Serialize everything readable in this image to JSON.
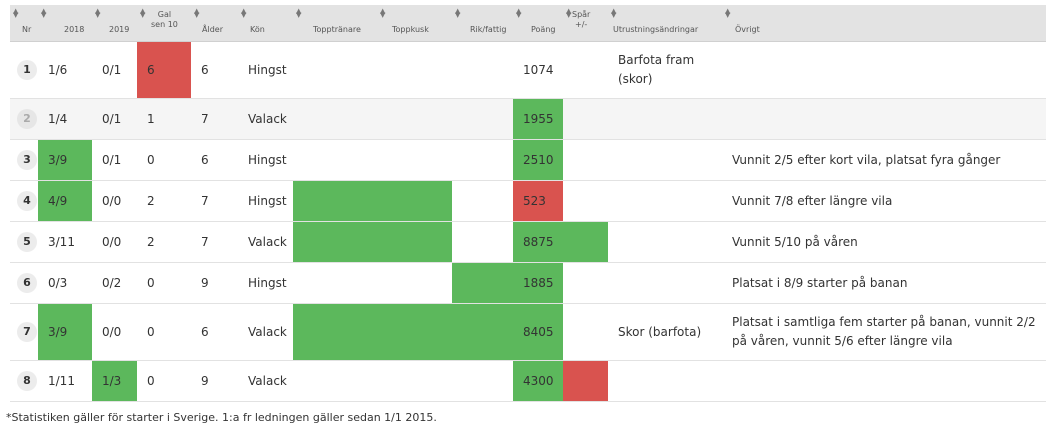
{
  "headers": {
    "nr": "Nr",
    "y2018": "2018",
    "y2019": "2019",
    "gal_line1": "Gal",
    "gal_line2": "sen 10",
    "alder": "Ålder",
    "kon": "Kön",
    "topptranare": "Topptränare",
    "toppkusk": "Toppkusk",
    "rikfattig": "Rik/fattig",
    "poang": "Poäng",
    "spar_line1": "Spår",
    "spar_line2": "+/-",
    "utrustning": "Utrustningsändringar",
    "ovrigt": "Övrigt"
  },
  "rows": [
    {
      "nr": "1",
      "y2018": "1/6",
      "y2019": "0/1",
      "gal": "6",
      "alder": "6",
      "kon": "Hingst",
      "tr": "",
      "ku": "",
      "rf": "",
      "poang": "1074",
      "spar": "",
      "utr": "Barfota fram (skor)",
      "ovr": "",
      "scratched": false,
      "hl": {
        "gal": "r"
      }
    },
    {
      "nr": "2",
      "y2018": "1/4",
      "y2019": "0/1",
      "gal": "1",
      "alder": "7",
      "kon": "Valack",
      "tr": "",
      "ku": "",
      "rf": "",
      "poang": "1955",
      "spar": "",
      "utr": "",
      "ovr": "",
      "scratched": true,
      "hl": {
        "poang": "g"
      }
    },
    {
      "nr": "3",
      "y2018": "3/9",
      "y2019": "0/1",
      "gal": "0",
      "alder": "6",
      "kon": "Hingst",
      "tr": "",
      "ku": "",
      "rf": "",
      "poang": "2510",
      "spar": "",
      "utr": "",
      "ovr": "Vunnit 2/5 efter kort vila, platsat fyra gånger",
      "scratched": false,
      "hl": {
        "y2018": "g",
        "poang": "g"
      }
    },
    {
      "nr": "4",
      "y2018": "4/9",
      "y2019": "0/0",
      "gal": "2",
      "alder": "7",
      "kon": "Hingst",
      "tr": "",
      "ku": "",
      "rf": "",
      "poang": "523",
      "spar": "",
      "utr": "",
      "ovr": "Vunnit 7/8 efter längre vila",
      "scratched": false,
      "hl": {
        "y2018": "g",
        "tr": "g",
        "ku": "g",
        "poang": "r"
      }
    },
    {
      "nr": "5",
      "y2018": "3/11",
      "y2019": "0/0",
      "gal": "2",
      "alder": "7",
      "kon": "Valack",
      "tr": "",
      "ku": "",
      "rf": "",
      "poang": "8875",
      "spar": "",
      "utr": "",
      "ovr": "Vunnit 5/10 på våren",
      "scratched": false,
      "hl": {
        "tr": "g",
        "ku": "g",
        "poang": "g",
        "spar": "g"
      }
    },
    {
      "nr": "6",
      "y2018": "0/3",
      "y2019": "0/2",
      "gal": "0",
      "alder": "9",
      "kon": "Hingst",
      "tr": "",
      "ku": "",
      "rf": "",
      "poang": "1885",
      "spar": "",
      "utr": "",
      "ovr": "Platsat i 8/9 starter på banan",
      "scratched": false,
      "hl": {
        "rf": "g",
        "poang": "g"
      }
    },
    {
      "nr": "7",
      "y2018": "3/9",
      "y2019": "0/0",
      "gal": "0",
      "alder": "6",
      "kon": "Valack",
      "tr": "",
      "ku": "",
      "rf": "",
      "poang": "8405",
      "spar": "",
      "utr": "Skor (barfota)",
      "ovr": "Platsat i samtliga fem starter på banan, vunnit 2/2 på våren, vunnit 5/6 efter längre vila",
      "scratched": false,
      "hl": {
        "y2018": "g",
        "tr": "g",
        "ku": "g",
        "rf": "g",
        "poang": "g"
      }
    },
    {
      "nr": "8",
      "y2018": "1/11",
      "y2019": "1/3",
      "gal": "0",
      "alder": "9",
      "kon": "Valack",
      "tr": "",
      "ku": "",
      "rf": "",
      "poang": "4300",
      "spar": "",
      "utr": "",
      "ovr": "",
      "scratched": false,
      "hl": {
        "y2019": "g",
        "poang": "g",
        "spar": "r"
      }
    }
  ],
  "colors": {
    "good": "#5cb85c",
    "bad": "#d9534f"
  },
  "footnote": "*Statistiken gäller för starter i Sverige. 1:a fr ledningen gäller sedan 1/1 2015."
}
